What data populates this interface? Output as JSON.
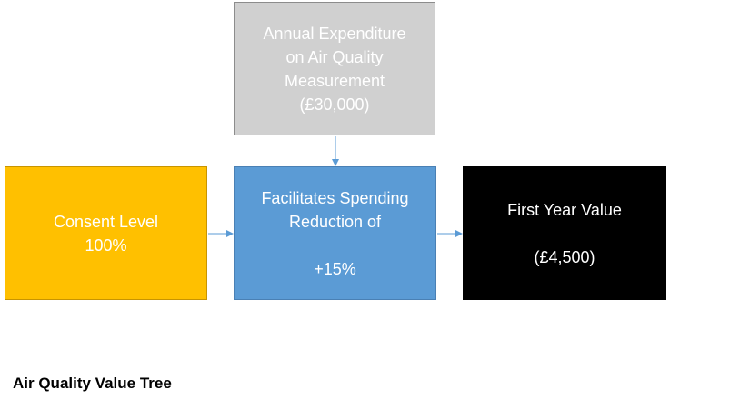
{
  "diagram": {
    "nodes": {
      "expenditure": {
        "lines": [
          "Annual Expenditure",
          "on Air Quality",
          "Measurement",
          "(£30,000)"
        ],
        "fill": "#d0d0d0"
      },
      "consent": {
        "lines": [
          "Consent Level",
          "100%"
        ],
        "fill": "#ffc000"
      },
      "reduction": {
        "lines": [
          "Facilitates Spending",
          "Reduction of",
          "+15%"
        ],
        "fill": "#5b9bd5"
      },
      "first_year": {
        "lines": [
          "First Year Value",
          "(£4,500)"
        ],
        "fill": "#000000"
      }
    },
    "edges": [
      {
        "from": "expenditure",
        "to": "reduction"
      },
      {
        "from": "consent",
        "to": "reduction"
      },
      {
        "from": "reduction",
        "to": "first_year"
      }
    ],
    "arrow_color": "#5b9bd5"
  },
  "caption": "Air Quality Value Tree"
}
